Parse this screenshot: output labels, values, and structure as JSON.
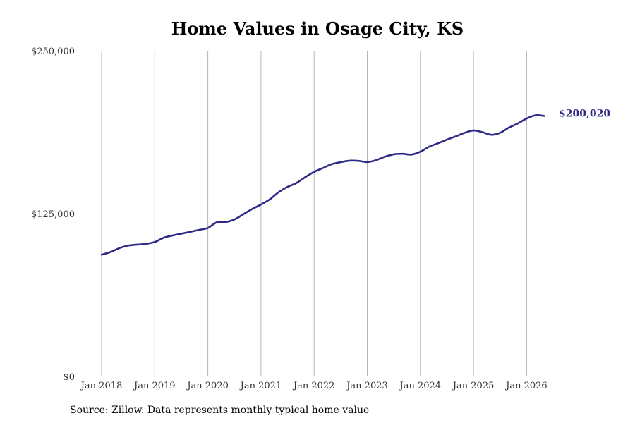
{
  "chart_data": {
    "type": "line",
    "title": "Home Values in Osage City, KS",
    "source": "Source: Zillow. Data represents monthly typical home value",
    "xlabel": "",
    "ylabel": "",
    "y_ticks": [
      {
        "value": 0,
        "label": "$0"
      },
      {
        "value": 125000,
        "label": "$125,000"
      },
      {
        "value": 250000,
        "label": "$250,000"
      }
    ],
    "ylim": [
      0,
      250000
    ],
    "x_ticks": [
      {
        "year": 2018,
        "label": "Jan 2018"
      },
      {
        "year": 2019,
        "label": "Jan 2019"
      },
      {
        "year": 2020,
        "label": "Jan 2020"
      },
      {
        "year": 2021,
        "label": "Jan 2021"
      },
      {
        "year": 2022,
        "label": "Jan 2022"
      },
      {
        "year": 2023,
        "label": "Jan 2023"
      },
      {
        "year": 2024,
        "label": "Jan 2024"
      },
      {
        "year": 2025,
        "label": "Jan 2025"
      },
      {
        "year": 2026,
        "label": "Jan 2026"
      }
    ],
    "xlim": [
      "2018-01",
      "2026-06"
    ],
    "grid": "vertical",
    "line_color": "#2e2a85",
    "end_label": "$200,020",
    "series": [
      {
        "values": [
          [
            "2018-01",
            93500
          ],
          [
            "2018-03",
            95500
          ],
          [
            "2018-05",
            98500
          ],
          [
            "2018-07",
            100500
          ],
          [
            "2018-09",
            101200
          ],
          [
            "2018-11",
            101800
          ],
          [
            "2019-01",
            103200
          ],
          [
            "2019-03",
            106500
          ],
          [
            "2019-05",
            108200
          ],
          [
            "2019-07",
            109600
          ],
          [
            "2019-09",
            111000
          ],
          [
            "2019-11",
            112500
          ],
          [
            "2020-01",
            114000
          ],
          [
            "2020-03",
            118300
          ],
          [
            "2020-05",
            118500
          ],
          [
            "2020-07",
            120500
          ],
          [
            "2020-09",
            124500
          ],
          [
            "2020-11",
            128500
          ],
          [
            "2021-01",
            132000
          ],
          [
            "2021-03",
            136000
          ],
          [
            "2021-05",
            141500
          ],
          [
            "2021-07",
            145500
          ],
          [
            "2021-09",
            148500
          ],
          [
            "2021-11",
            153000
          ],
          [
            "2022-01",
            157000
          ],
          [
            "2022-03",
            160000
          ],
          [
            "2022-05",
            163000
          ],
          [
            "2022-07",
            164500
          ],
          [
            "2022-09",
            165600
          ],
          [
            "2022-11",
            165500
          ],
          [
            "2023-01",
            164600
          ],
          [
            "2023-03",
            166000
          ],
          [
            "2023-05",
            168700
          ],
          [
            "2023-07",
            170500
          ],
          [
            "2023-09",
            170900
          ],
          [
            "2023-11",
            170300
          ],
          [
            "2024-01",
            172500
          ],
          [
            "2024-03",
            176400
          ],
          [
            "2024-05",
            179000
          ],
          [
            "2024-07",
            181800
          ],
          [
            "2024-09",
            184300
          ],
          [
            "2024-11",
            187000
          ],
          [
            "2025-01",
            188800
          ],
          [
            "2025-03",
            187500
          ],
          [
            "2025-05",
            185500
          ],
          [
            "2025-07",
            187000
          ],
          [
            "2025-09",
            191000
          ],
          [
            "2025-11",
            194200
          ],
          [
            "2026-01",
            198000
          ],
          [
            "2026-03",
            200500
          ],
          [
            "2026-05",
            200020
          ]
        ]
      }
    ]
  }
}
